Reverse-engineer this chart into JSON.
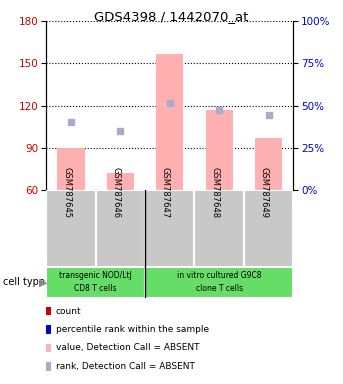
{
  "title": "GDS4398 / 1442070_at",
  "samples": [
    "GSM787645",
    "GSM787646",
    "GSM787647",
    "GSM787648",
    "GSM787649"
  ],
  "bar_values": [
    90,
    72,
    157,
    117,
    97
  ],
  "rank_values": [
    108,
    102,
    122,
    117,
    113
  ],
  "ylim_left": [
    60,
    180
  ],
  "ylim_right": [
    0,
    100
  ],
  "yticks_left": [
    60,
    90,
    120,
    150,
    180
  ],
  "yticks_right": [
    0,
    25,
    50,
    75,
    100
  ],
  "bar_color": "#ffb0b0",
  "rank_color": "#aaaacc",
  "group1_label_line1": "transgenic NOD/LtJ",
  "group1_label_line2": "CD8 T cells",
  "group2_label_line1": "in vitro cultured G9C8",
  "group2_label_line2": "clone T cells",
  "group1_samples": [
    0,
    1
  ],
  "group2_samples": [
    2,
    3,
    4
  ],
  "sample_bg": "#c8c8c8",
  "group_bg": "#66dd66",
  "cell_type_label": "cell type",
  "legend_items": [
    {
      "color": "#cc0000",
      "label": "count"
    },
    {
      "color": "#0000cc",
      "label": "percentile rank within the sample"
    },
    {
      "color": "#ffb0b0",
      "label": "value, Detection Call = ABSENT"
    },
    {
      "color": "#aaaacc",
      "label": "rank, Detection Call = ABSENT"
    }
  ],
  "left_axis_color": "#cc0000",
  "right_axis_color": "#0000cc"
}
